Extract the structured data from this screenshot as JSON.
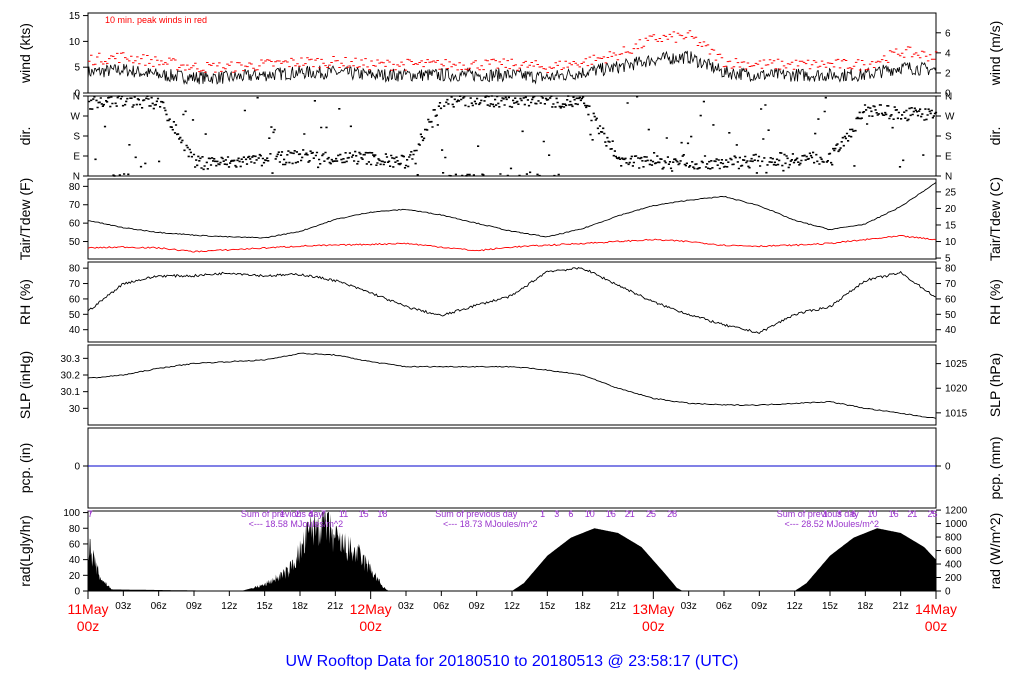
{
  "colors": {
    "frame": "#000000",
    "wind": "#000000",
    "gust": "#ff0000",
    "tair": "#000000",
    "tdew": "#ff0000",
    "precip": "#0000cc",
    "radiation": "#000000",
    "solar_annotation": "#9933cc",
    "date_label": "#ff0000",
    "title": "#0000ff"
  },
  "chart_data": [
    {
      "type": "line",
      "panel": "wind",
      "ylabel": "wind (kts)",
      "ylabel_right": "wind (m/s)",
      "ylim": [
        0,
        15.5
      ],
      "yticks": [
        0,
        5,
        10,
        15
      ],
      "yticks_right": [
        0,
        2,
        4,
        6
      ],
      "annotation": "10 min. peak winds in red",
      "x_hours": [
        0,
        3,
        6,
        9,
        12,
        15,
        18,
        21,
        24,
        27,
        30,
        33,
        36,
        39,
        42,
        45,
        48,
        51,
        54,
        57,
        60,
        63,
        66,
        69,
        72
      ],
      "series": [
        {
          "role": "mean wind",
          "values": [
            4,
            4.5,
            3.5,
            3,
            3,
            3.5,
            4,
            4,
            3.5,
            3.5,
            3.5,
            3.5,
            3.5,
            3,
            4,
            5,
            6.5,
            7,
            4,
            3.5,
            3.5,
            3.5,
            3.5,
            5,
            4.5
          ]
        },
        {
          "role": "10 min. peak winds",
          "values": [
            6.5,
            7,
            6,
            5,
            5,
            5.5,
            6,
            6,
            5.5,
            5.5,
            5.5,
            5.5,
            5.5,
            5,
            6,
            7.5,
            10.5,
            11,
            6,
            5.5,
            5.5,
            5.5,
            5.5,
            8,
            7
          ]
        }
      ]
    },
    {
      "type": "scatter",
      "panel": "direction",
      "ylabel": "dir.",
      "ylabel_right": "dir.",
      "ytick_labels": [
        "N",
        "W",
        "S",
        "E",
        "N"
      ],
      "yticks_deg": [
        360,
        270,
        180,
        90,
        0
      ],
      "x_hours": [
        0,
        3,
        6,
        9,
        12,
        15,
        18,
        21,
        24,
        27,
        30,
        33,
        36,
        39,
        42,
        45,
        48,
        51,
        54,
        57,
        60,
        63,
        66,
        69,
        72
      ],
      "values": [
        330,
        340,
        330,
        60,
        60,
        70,
        90,
        80,
        80,
        60,
        340,
        340,
        340,
        340,
        330,
        70,
        60,
        60,
        60,
        70,
        80,
        80,
        300,
        280,
        280
      ]
    },
    {
      "type": "line",
      "panel": "temperature",
      "ylabel": "Tair/Tdew (F)",
      "ylabel_right": "Tair/Tdew (C)",
      "ylim": [
        40.5,
        84
      ],
      "yticks": [
        50,
        60,
        70,
        80
      ],
      "yticks_right": [
        5,
        10,
        15,
        20,
        25
      ],
      "x_hours": [
        0,
        3,
        6,
        9,
        12,
        15,
        18,
        21,
        24,
        27,
        30,
        33,
        36,
        39,
        42,
        45,
        48,
        51,
        54,
        57,
        60,
        63,
        66,
        69,
        72
      ],
      "series": [
        {
          "role": "air temperature",
          "values": [
            61.5,
            57.5,
            55,
            53.5,
            52.5,
            52,
            55.5,
            62,
            66,
            67.5,
            64.5,
            60,
            55.5,
            52.5,
            57,
            64,
            69.5,
            72.5,
            74.5,
            69.5,
            61.5,
            56.5,
            59.5,
            69,
            82
          ]
        },
        {
          "role": "dew point",
          "values": [
            46.5,
            47,
            46.5,
            44.5,
            45.5,
            46.5,
            47.5,
            48,
            48.5,
            49,
            47,
            45,
            47,
            48,
            49,
            50,
            51,
            50,
            48,
            47.5,
            48,
            49,
            51,
            53,
            51
          ]
        }
      ]
    },
    {
      "type": "line",
      "panel": "humidity",
      "ylabel": "RH (%)",
      "ylabel_right": "RH (%)",
      "ylim": [
        32,
        84
      ],
      "yticks": [
        40,
        50,
        60,
        70,
        80
      ],
      "yticks_right": [
        40,
        50,
        60,
        70,
        80
      ],
      "x_hours": [
        0,
        3,
        6,
        9,
        12,
        15,
        18,
        21,
        24,
        27,
        30,
        33,
        36,
        39,
        42,
        45,
        48,
        51,
        54,
        57,
        60,
        63,
        66,
        69,
        72
      ],
      "values": [
        52,
        70,
        75,
        75,
        77,
        75,
        76,
        72,
        64,
        55,
        49,
        56,
        62,
        78,
        80,
        69,
        58,
        50,
        43,
        38,
        50,
        55,
        72,
        77,
        61
      ]
    },
    {
      "type": "line",
      "panel": "pressure",
      "ylabel": "SLP (inHg)",
      "ylabel_right": "SLP (hPa)",
      "ylim": [
        29.9,
        30.38
      ],
      "yticks": [
        30.0,
        30.1,
        30.2,
        30.3
      ],
      "yticks_right": [
        1015,
        1020,
        1025
      ],
      "x_hours": [
        0,
        3,
        6,
        9,
        12,
        15,
        18,
        21,
        24,
        27,
        30,
        33,
        36,
        39,
        42,
        45,
        48,
        51,
        54,
        57,
        60,
        63,
        66,
        69,
        72
      ],
      "values": [
        30.18,
        30.2,
        30.24,
        30.27,
        30.28,
        30.29,
        30.33,
        30.32,
        30.28,
        30.25,
        30.25,
        30.25,
        30.25,
        30.23,
        30.2,
        30.12,
        30.06,
        30.03,
        30.02,
        30.02,
        30.03,
        30.04,
        30.0,
        29.97,
        29.94
      ]
    },
    {
      "type": "line",
      "panel": "precipitation",
      "ylabel": "pcp. (in)",
      "ylabel_right": "pcp. (mm)",
      "yticks": [
        0
      ],
      "yticks_right": [
        0
      ],
      "x_hours": [
        0,
        72
      ],
      "values": [
        0,
        0
      ]
    },
    {
      "type": "area",
      "panel": "radiation",
      "ylabel": "rad(Lgly/hr)",
      "ylabel_right": "rad (W/m^2)",
      "ylim": [
        0,
        102
      ],
      "yticks": [
        0,
        20,
        40,
        60,
        80,
        100
      ],
      "yticks_right": [
        0,
        200,
        400,
        600,
        800,
        1000,
        1200
      ],
      "x_hours": [
        0,
        1,
        2,
        13,
        15,
        17,
        18,
        19,
        20,
        21,
        22,
        23,
        24,
        25,
        25.5,
        36,
        37,
        39,
        41,
        43,
        45,
        47,
        49,
        50,
        50.5,
        60,
        61,
        63,
        65,
        67,
        69,
        71,
        72
      ],
      "values": [
        60,
        18,
        2,
        0,
        8,
        25,
        50,
        80,
        90,
        65,
        55,
        45,
        28,
        6,
        0,
        0,
        10,
        45,
        68,
        80,
        74,
        56,
        22,
        4,
        0,
        0,
        10,
        45,
        68,
        80,
        74,
        56,
        40
      ],
      "daily_sums": [
        "Sum of previous day",
        "<--- 18.58 MJoules/m^2",
        "Sum of previous day",
        "<--- 18.73 MJoules/m^2",
        "Sum of previous day",
        "<--- 28.52 MJoules/m^2"
      ],
      "hour_labels": [
        {
          "x_hour": 0.2,
          "label": "7"
        },
        {
          "x_hour": 16.5,
          "label": "1"
        },
        {
          "x_hour": 17.8,
          "label": "2"
        },
        {
          "x_hour": 18.9,
          "label": "4"
        },
        {
          "x_hour": 20.0,
          "label": "7"
        },
        {
          "x_hour": 21.7,
          "label": "11"
        },
        {
          "x_hour": 23.4,
          "label": "15"
        },
        {
          "x_hour": 25.0,
          "label": "18"
        },
        {
          "x_hour": 38.6,
          "label": "1"
        },
        {
          "x_hour": 39.8,
          "label": "3"
        },
        {
          "x_hour": 41.0,
          "label": "6"
        },
        {
          "x_hour": 42.6,
          "label": "10"
        },
        {
          "x_hour": 44.4,
          "label": "16"
        },
        {
          "x_hour": 46.0,
          "label": "21"
        },
        {
          "x_hour": 47.8,
          "label": "25"
        },
        {
          "x_hour": 49.6,
          "label": "28"
        },
        {
          "x_hour": 62.6,
          "label": "1"
        },
        {
          "x_hour": 63.8,
          "label": "3"
        },
        {
          "x_hour": 65.0,
          "label": "6"
        },
        {
          "x_hour": 66.6,
          "label": "10"
        },
        {
          "x_hour": 68.4,
          "label": "16"
        },
        {
          "x_hour": 70.0,
          "label": "21"
        },
        {
          "x_hour": 71.7,
          "label": "25"
        }
      ]
    }
  ],
  "x_axis": {
    "hour_ticks": [
      3,
      6,
      9,
      12,
      15,
      18,
      21,
      27,
      30,
      33,
      36,
      39,
      42,
      45,
      51,
      54,
      57,
      60,
      63,
      66,
      69
    ],
    "hour_labels": [
      "03z",
      "06z",
      "09z",
      "12z",
      "15z",
      "18z",
      "21z",
      "03z",
      "06z",
      "09z",
      "12z",
      "15z",
      "18z",
      "21z",
      "03z",
      "06z",
      "09z",
      "12z",
      "15z",
      "18z",
      "21z"
    ],
    "date_markers": [
      {
        "x_hour": 0,
        "date": "11May",
        "time": "00z"
      },
      {
        "x_hour": 24,
        "date": "12May",
        "time": "00z"
      },
      {
        "x_hour": 48,
        "date": "13May",
        "time": "00z"
      },
      {
        "x_hour": 72,
        "date": "14May",
        "time": "00z"
      }
    ]
  },
  "title": "UW Rooftop Data for 20180510  to  20180513 @ 23:58:17  (UTC)"
}
